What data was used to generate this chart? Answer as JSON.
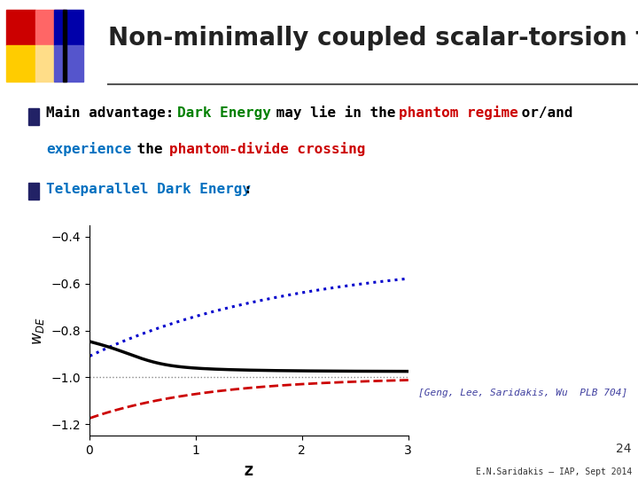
{
  "title": "Non-minimally coupled scalar-torsion theory",
  "title_color": "#222222",
  "title_fontsize": 20,
  "background_color": "#ffffff",
  "bullet1_line1": [
    {
      "text": "Main advantage: ",
      "color": "#000000"
    },
    {
      "text": "Dark Energy",
      "color": "#008000"
    },
    {
      "text": " may lie in the ",
      "color": "#000000"
    },
    {
      "text": "phantom regime",
      "color": "#cc0000"
    },
    {
      "text": " or/and",
      "color": "#000000"
    }
  ],
  "bullet1_line2": [
    {
      "text": "experience",
      "color": "#0070c0"
    },
    {
      "text": " the ",
      "color": "#000000"
    },
    {
      "text": "phantom-divide crossing",
      "color": "#cc0000"
    }
  ],
  "bullet2_line1": [
    {
      "text": "Teleparallel Dark Energy",
      "color": "#0070c0"
    },
    {
      "text": ":",
      "color": "#000000"
    }
  ],
  "xlabel": "z",
  "xlim": [
    0,
    3
  ],
  "ylim": [
    -1.25,
    -0.35
  ],
  "yticks": [
    -1.2,
    -1.0,
    -0.8,
    -0.6,
    -0.4
  ],
  "xticks": [
    0,
    1,
    2,
    3
  ],
  "reference": "[Geng, Lee, Saridakis, Wu  PLB 704]",
  "reference_color": "#4040a0",
  "footer": "E.N.Saridakis – IAP, Sept 2014",
  "page_number": "24",
  "dotted_line_color": "#0000cc",
  "dashed_line_color": "#cc0000",
  "solid_line_color": "#000000",
  "horizontal_dotted_color": "#888888",
  "logo_colors": [
    "#cc0000",
    "#ff6666",
    "#ffcc00",
    "#ffdd88",
    "#0000aa",
    "#5555cc"
  ],
  "bullet_color": "#222266"
}
